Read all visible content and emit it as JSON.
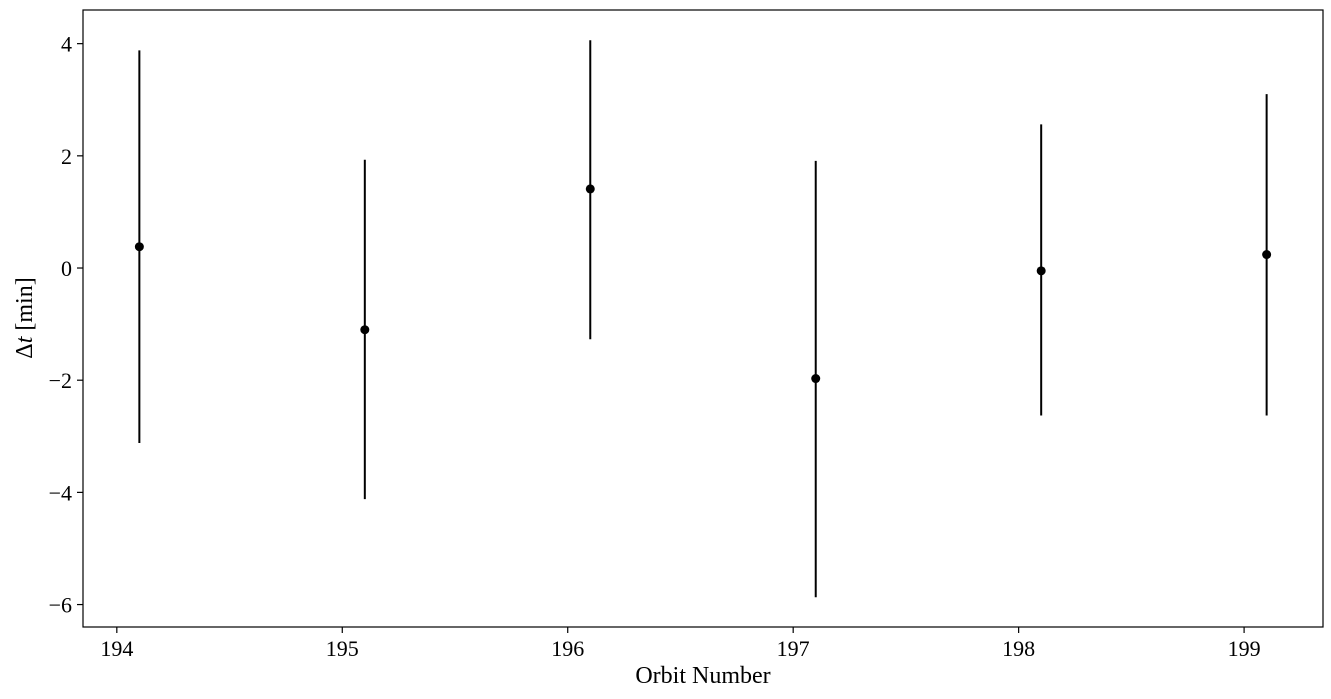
{
  "chart_data": {
    "type": "scatter",
    "xlabel": "Orbit Number",
    "ylabel_prefix": "Δ",
    "ylabel_var": "t",
    "ylabel_unit": "[min]",
    "xlim": [
      193.85,
      199.35
    ],
    "ylim": [
      -6.4,
      4.6
    ],
    "xticks": [
      194,
      195,
      196,
      197,
      198,
      199
    ],
    "xtick_labels": [
      "194",
      "195",
      "196",
      "197",
      "198",
      "199"
    ],
    "yticks": [
      -6,
      -4,
      -2,
      0,
      2,
      4
    ],
    "ytick_labels": [
      "−6",
      "−4",
      "−2",
      "0",
      "2",
      "4"
    ],
    "grid": false,
    "marker_color": "#000000",
    "points": [
      {
        "x": 194.1,
        "y": 0.38,
        "yerr_low": -3.12,
        "yerr_high": 3.88
      },
      {
        "x": 195.1,
        "y": -1.1,
        "yerr_low": -4.12,
        "yerr_high": 1.93
      },
      {
        "x": 196.1,
        "y": 1.41,
        "yerr_low": -1.27,
        "yerr_high": 4.06
      },
      {
        "x": 197.1,
        "y": -1.97,
        "yerr_low": -5.87,
        "yerr_high": 1.91
      },
      {
        "x": 198.1,
        "y": -0.05,
        "yerr_low": -2.63,
        "yerr_high": 2.56
      },
      {
        "x": 199.1,
        "y": 0.24,
        "yerr_low": -2.63,
        "yerr_high": 3.1
      }
    ]
  }
}
